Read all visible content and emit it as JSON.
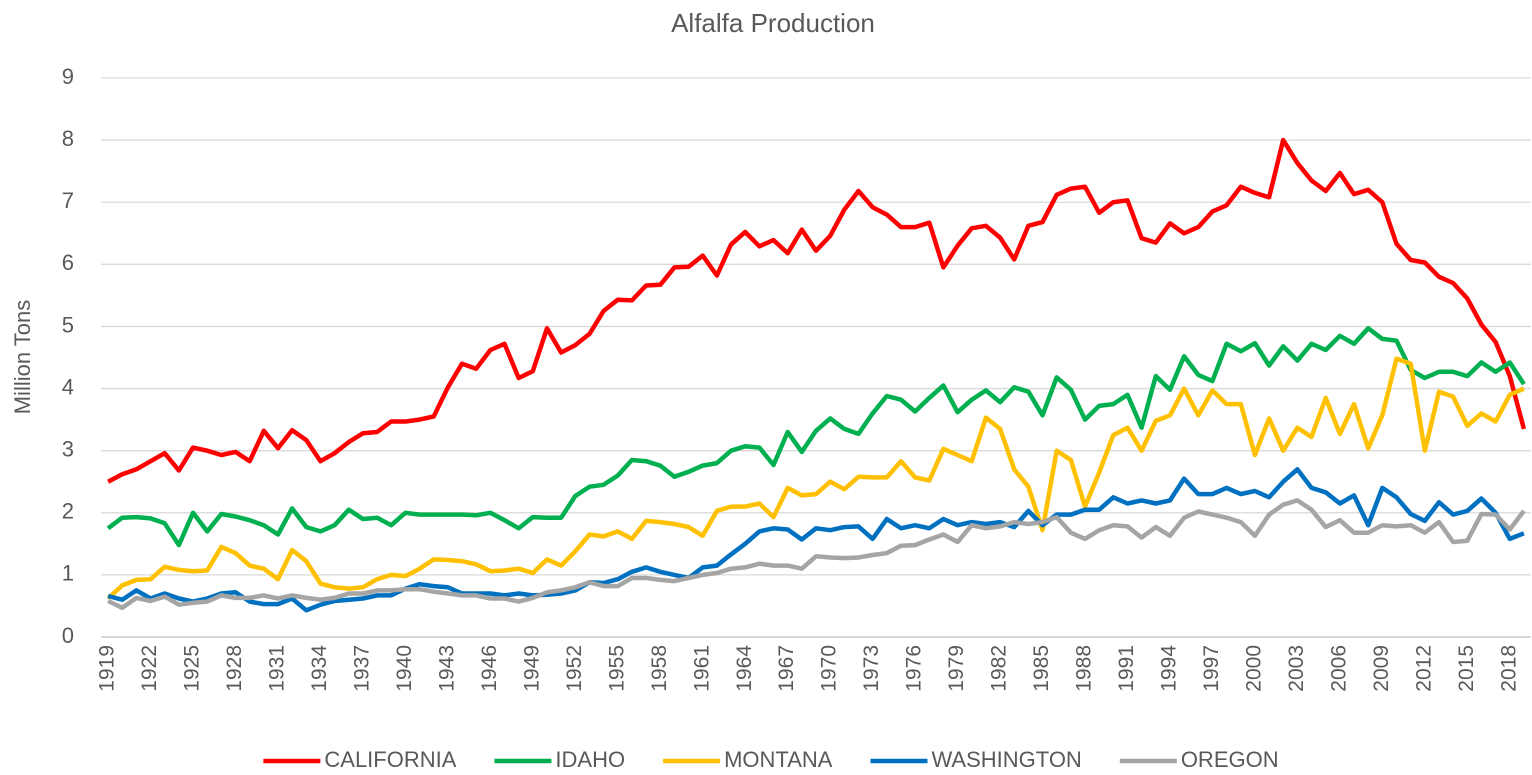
{
  "chart_data": {
    "type": "line",
    "title": "Alfalfa Production",
    "y_label": "Million Tons",
    "categories": [
      "1919",
      null,
      null,
      "1922",
      null,
      null,
      "1925",
      null,
      null,
      "1928",
      null,
      null,
      "1931",
      null,
      null,
      "1934",
      null,
      null,
      "1937",
      null,
      null,
      "1940",
      null,
      null,
      "1943",
      null,
      null,
      "1946",
      null,
      null,
      "1949",
      null,
      null,
      "1952",
      null,
      null,
      "1955",
      null,
      null,
      "1958",
      null,
      null,
      "1961",
      null,
      null,
      "1964",
      null,
      null,
      "1967",
      null,
      null,
      "1970",
      null,
      null,
      "1973",
      null,
      null,
      "1976",
      null,
      null,
      "1979",
      null,
      null,
      "1982",
      null,
      null,
      "1985",
      null,
      null,
      "1988",
      null,
      null,
      "1991",
      null,
      null,
      "1994",
      null,
      null,
      "1997",
      null,
      null,
      "2000",
      null,
      null,
      "2003",
      null,
      null,
      "2006",
      null,
      null,
      "2009",
      null,
      null,
      "2012",
      null,
      null,
      "2015",
      null,
      null,
      "2018",
      null
    ],
    "series": [
      {
        "name": "CALIFORNIA",
        "color": "#ff0000",
        "values": [
          2.5,
          2.62,
          2.7,
          2.83,
          2.96,
          2.68,
          3.05,
          3.0,
          2.93,
          2.98,
          2.83,
          3.32,
          3.04,
          3.33,
          3.17,
          2.83,
          2.96,
          3.14,
          3.28,
          3.3,
          3.47,
          3.47,
          3.5,
          3.55,
          4.02,
          4.4,
          4.32,
          4.62,
          4.72,
          4.17,
          4.28,
          4.97,
          4.58,
          4.7,
          4.88,
          5.25,
          5.43,
          5.42,
          5.66,
          5.67,
          5.95,
          5.96,
          6.14,
          5.82,
          6.32,
          6.52,
          6.29,
          6.39,
          6.18,
          6.56,
          6.22,
          6.46,
          6.88,
          7.18,
          6.92,
          6.8,
          6.6,
          6.6,
          6.67,
          5.95,
          6.3,
          6.58,
          6.62,
          6.43,
          6.08,
          6.62,
          6.68,
          7.12,
          7.22,
          7.25,
          6.83,
          7.0,
          7.03,
          6.42,
          6.35,
          6.66,
          6.5,
          6.6,
          6.85,
          6.95,
          7.25,
          7.15,
          7.08,
          8.0,
          7.63,
          7.35,
          7.18,
          7.47,
          7.13,
          7.2,
          7.0,
          6.33,
          6.07,
          6.03,
          5.8,
          5.7,
          5.45,
          5.03,
          4.75,
          4.2,
          3.35
        ]
      },
      {
        "name": "IDAHO",
        "color": "#00b050",
        "values": [
          1.75,
          1.92,
          1.93,
          1.91,
          1.83,
          1.48,
          2.0,
          1.7,
          1.98,
          1.94,
          1.88,
          1.8,
          1.65,
          2.07,
          1.77,
          1.7,
          1.8,
          2.05,
          1.9,
          1.92,
          1.8,
          2.0,
          1.97,
          1.97,
          1.97,
          1.97,
          1.96,
          2.0,
          1.88,
          1.75,
          1.93,
          1.92,
          1.92,
          2.27,
          2.42,
          2.45,
          2.6,
          2.85,
          2.83,
          2.76,
          2.58,
          2.66,
          2.76,
          2.8,
          3.0,
          3.07,
          3.05,
          2.77,
          3.3,
          2.98,
          3.32,
          3.52,
          3.35,
          3.27,
          3.6,
          3.88,
          3.82,
          3.63,
          3.85,
          4.05,
          3.62,
          3.82,
          3.97,
          3.78,
          4.02,
          3.95,
          3.57,
          4.18,
          3.98,
          3.5,
          3.72,
          3.75,
          3.9,
          3.37,
          4.2,
          3.98,
          4.52,
          4.22,
          4.12,
          4.72,
          4.6,
          4.73,
          4.37,
          4.68,
          4.45,
          4.72,
          4.62,
          4.85,
          4.72,
          4.97,
          4.8,
          4.77,
          4.3,
          4.17,
          4.27,
          4.27,
          4.2,
          4.42,
          4.27,
          4.42,
          4.07
        ]
      },
      {
        "name": "MONTANA",
        "color": "#ffc000",
        "values": [
          0.62,
          0.83,
          0.92,
          0.93,
          1.13,
          1.08,
          1.06,
          1.07,
          1.45,
          1.35,
          1.15,
          1.1,
          0.93,
          1.4,
          1.22,
          0.86,
          0.8,
          0.78,
          0.8,
          0.93,
          1.0,
          0.98,
          1.1,
          1.25,
          1.24,
          1.22,
          1.17,
          1.06,
          1.07,
          1.1,
          1.03,
          1.25,
          1.15,
          1.38,
          1.65,
          1.62,
          1.7,
          1.58,
          1.87,
          1.85,
          1.82,
          1.77,
          1.63,
          2.03,
          2.1,
          2.1,
          2.15,
          1.93,
          2.4,
          2.28,
          2.3,
          2.5,
          2.38,
          2.58,
          2.57,
          2.57,
          2.83,
          2.57,
          2.52,
          3.03,
          2.93,
          2.83,
          3.53,
          3.35,
          2.7,
          2.42,
          1.72,
          3.0,
          2.85,
          2.1,
          2.65,
          3.25,
          3.37,
          3.0,
          3.48,
          3.57,
          4.0,
          3.57,
          3.97,
          3.75,
          3.75,
          2.93,
          3.52,
          3.0,
          3.37,
          3.22,
          3.85,
          3.27,
          3.75,
          3.04,
          3.57,
          4.48,
          4.4,
          3.0,
          3.95,
          3.87,
          3.4,
          3.6,
          3.47,
          3.9,
          4.0
        ]
      },
      {
        "name": "WASHINGTON",
        "color": "#0070c0",
        "values": [
          0.66,
          0.6,
          0.75,
          0.62,
          0.7,
          0.62,
          0.57,
          0.62,
          0.7,
          0.72,
          0.57,
          0.53,
          0.53,
          0.62,
          0.43,
          0.52,
          0.58,
          0.6,
          0.62,
          0.67,
          0.67,
          0.78,
          0.85,
          0.82,
          0.8,
          0.7,
          0.7,
          0.7,
          0.67,
          0.7,
          0.67,
          0.68,
          0.7,
          0.75,
          0.88,
          0.87,
          0.93,
          1.05,
          1.12,
          1.05,
          1.0,
          0.95,
          1.12,
          1.15,
          1.33,
          1.5,
          1.7,
          1.75,
          1.73,
          1.57,
          1.75,
          1.72,
          1.77,
          1.78,
          1.58,
          1.9,
          1.75,
          1.8,
          1.75,
          1.9,
          1.8,
          1.85,
          1.82,
          1.85,
          1.77,
          2.03,
          1.8,
          1.97,
          1.97,
          2.05,
          2.05,
          2.25,
          2.15,
          2.2,
          2.15,
          2.2,
          2.55,
          2.3,
          2.3,
          2.4,
          2.3,
          2.35,
          2.25,
          2.5,
          2.7,
          2.4,
          2.33,
          2.15,
          2.28,
          1.8,
          2.4,
          2.25,
          1.98,
          1.87,
          2.17,
          1.97,
          2.03,
          2.23,
          2.0,
          1.58,
          1.67
        ]
      },
      {
        "name": "OREGON",
        "color": "#a5a5a5",
        "values": [
          0.58,
          0.47,
          0.63,
          0.58,
          0.65,
          0.52,
          0.55,
          0.57,
          0.67,
          0.63,
          0.63,
          0.67,
          0.62,
          0.67,
          0.63,
          0.6,
          0.63,
          0.7,
          0.7,
          0.75,
          0.75,
          0.77,
          0.77,
          0.73,
          0.7,
          0.67,
          0.67,
          0.62,
          0.62,
          0.57,
          0.63,
          0.72,
          0.75,
          0.8,
          0.88,
          0.82,
          0.82,
          0.95,
          0.95,
          0.92,
          0.9,
          0.95,
          1.0,
          1.03,
          1.1,
          1.12,
          1.18,
          1.15,
          1.15,
          1.1,
          1.3,
          1.28,
          1.27,
          1.28,
          1.32,
          1.35,
          1.47,
          1.48,
          1.57,
          1.65,
          1.53,
          1.8,
          1.75,
          1.78,
          1.85,
          1.82,
          1.85,
          1.93,
          1.68,
          1.58,
          1.72,
          1.8,
          1.78,
          1.6,
          1.77,
          1.63,
          1.92,
          2.02,
          1.97,
          1.92,
          1.85,
          1.63,
          1.97,
          2.13,
          2.2,
          2.05,
          1.77,
          1.88,
          1.68,
          1.68,
          1.8,
          1.78,
          1.8,
          1.68,
          1.85,
          1.53,
          1.55,
          1.98,
          1.97,
          1.73,
          2.03
        ]
      }
    ],
    "ylim": [
      0,
      9
    ],
    "yticks": [
      0,
      1,
      2,
      3,
      4,
      5,
      6,
      7,
      8,
      9
    ],
    "grid": true,
    "legend": "bottom"
  }
}
